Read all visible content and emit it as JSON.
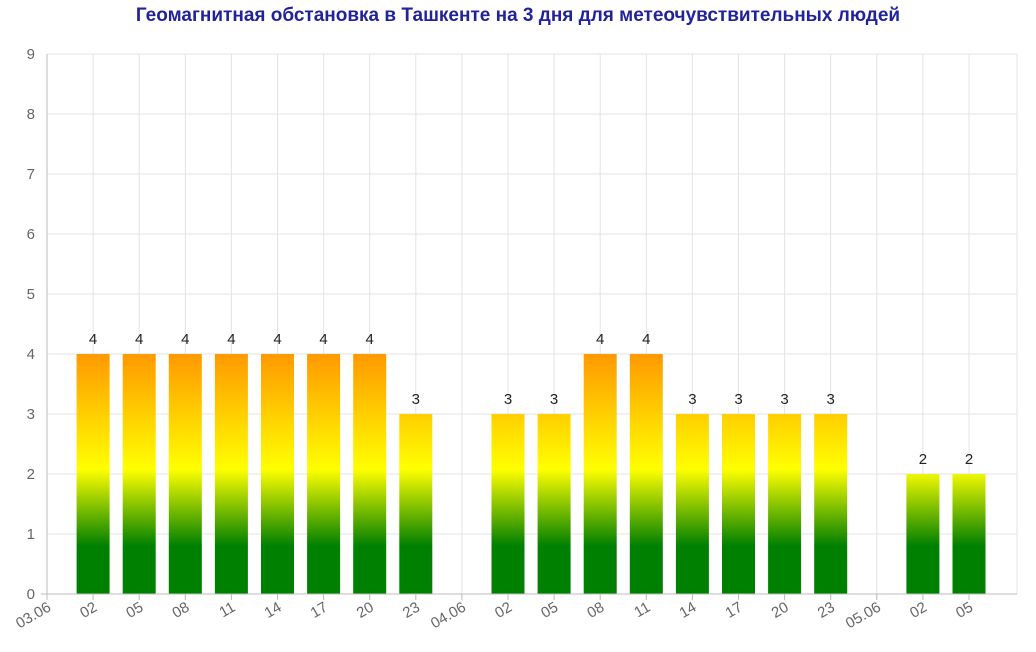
{
  "chart_data": {
    "type": "bar",
    "title": "Геомагнитная обстановка в Ташкенте на 3 дня для метеочувствительных людей",
    "xlabel": "",
    "ylabel": "",
    "ylim": [
      0,
      9
    ],
    "yticks": [
      0,
      1,
      2,
      3,
      4,
      5,
      6,
      7,
      8,
      9
    ],
    "grid": true,
    "legend": "none",
    "categories": [
      "03.06",
      "02",
      "05",
      "08",
      "11",
      "14",
      "17",
      "20",
      "23",
      "04.06",
      "02",
      "05",
      "08",
      "11",
      "14",
      "17",
      "20",
      "23",
      "05.06",
      "02",
      "05"
    ],
    "values": [
      null,
      4,
      4,
      4,
      4,
      4,
      4,
      4,
      3,
      null,
      3,
      3,
      4,
      4,
      3,
      3,
      3,
      3,
      null,
      2,
      2
    ],
    "data_labels": [
      "",
      "4",
      "4",
      "4",
      "4",
      "4",
      "4",
      "4",
      "3",
      "",
      "3",
      "3",
      "4",
      "4",
      "3",
      "3",
      "3",
      "3",
      "",
      "2",
      "2"
    ],
    "gradient_colors": {
      "low": "#008000",
      "mid": "#ffff00",
      "high": "#ff9900"
    },
    "axis_color": "#bdbdbd",
    "grid_color": "#e3e3e3",
    "tick_color": "#666666",
    "title_color": "#22229a"
  }
}
